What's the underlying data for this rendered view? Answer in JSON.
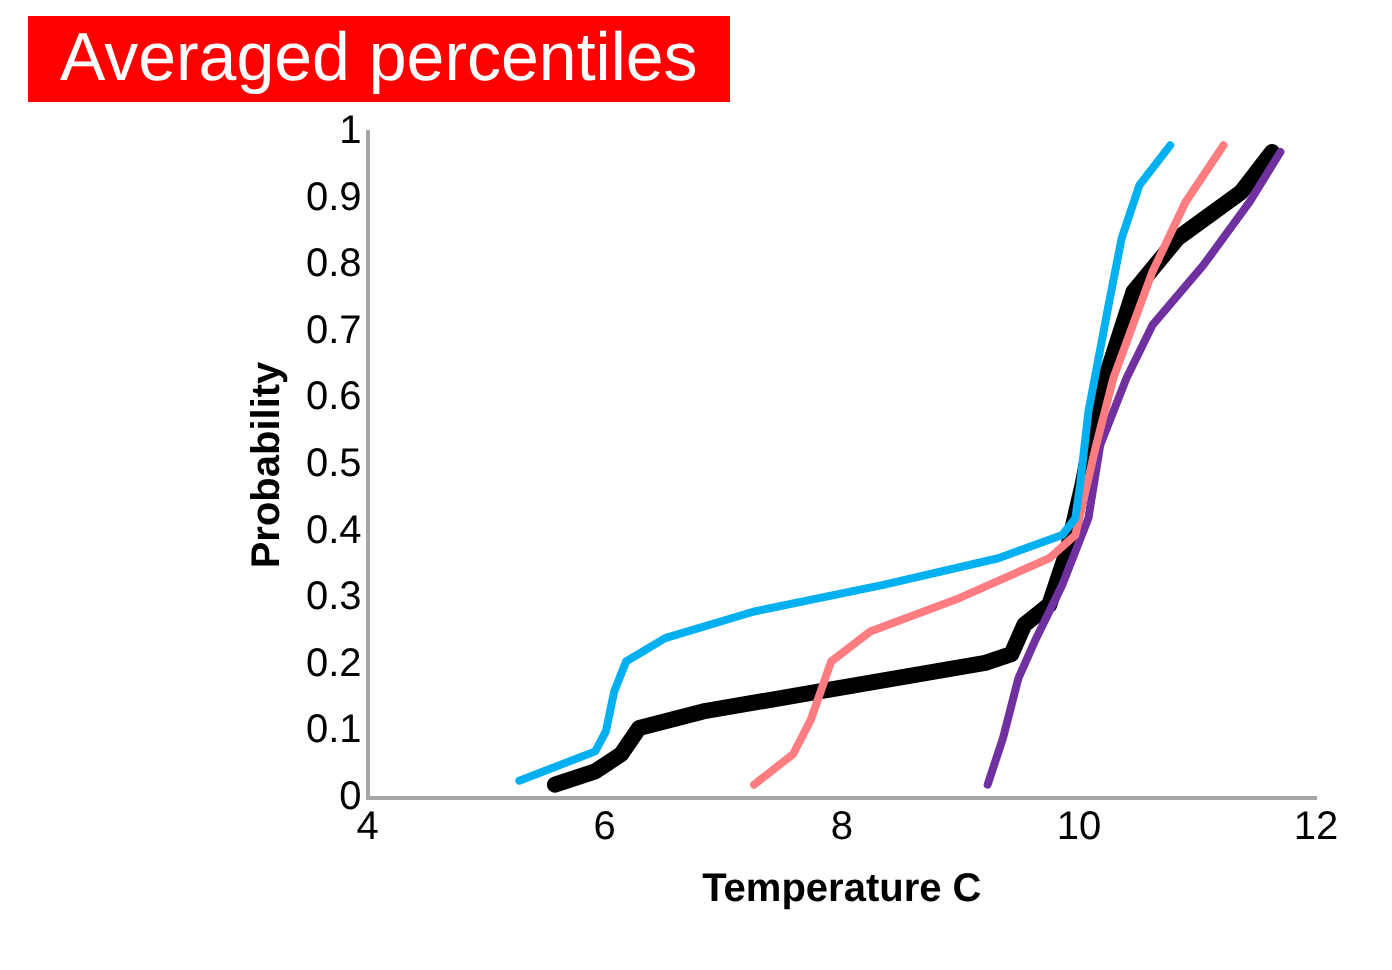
{
  "chart_data": {
    "type": "line",
    "title": "Averaged percentiles",
    "xlabel": "Temperature C",
    "ylabel": "Probability",
    "xlim": [
      4,
      12
    ],
    "xticks": [
      4,
      6,
      8,
      10,
      12
    ],
    "ylim": [
      0,
      1
    ],
    "yticks": [
      0,
      0.1,
      0.2,
      0.3,
      0.4,
      0.5,
      0.6,
      0.7,
      0.8,
      0.9,
      1
    ],
    "grid": false,
    "legend": false,
    "series": [
      {
        "color": "#00b0f0",
        "x": [
          5.28,
          5.92,
          6.01,
          6.08,
          6.18,
          6.51,
          7.26,
          8.35,
          9.32,
          9.86,
          9.97,
          10.01,
          10.08,
          10.25,
          10.36,
          10.51,
          10.77
        ],
        "values": [
          0.026,
          0.07,
          0.1,
          0.16,
          0.205,
          0.24,
          0.28,
          0.32,
          0.36,
          0.395,
          0.42,
          0.47,
          0.58,
          0.74,
          0.84,
          0.92,
          0.98
        ]
      },
      {
        "color": "#ff7c80",
        "x": [
          7.26,
          7.59,
          7.74,
          7.91,
          8.24,
          8.99,
          9.75,
          9.97,
          10.14,
          10.29,
          10.62,
          10.9,
          11.22
        ],
        "values": [
          0.02,
          0.066,
          0.118,
          0.205,
          0.25,
          0.3,
          0.36,
          0.395,
          0.526,
          0.63,
          0.79,
          0.895,
          0.98
        ]
      },
      {
        "color": "#7030a0",
        "x": [
          9.23,
          9.36,
          9.49,
          9.64,
          9.86,
          10.08,
          10.18,
          10.4,
          10.62,
          11.05,
          11.44,
          11.7
        ],
        "values": [
          0.02,
          0.09,
          0.18,
          0.24,
          0.32,
          0.42,
          0.53,
          0.63,
          0.71,
          0.8,
          0.895,
          0.97
        ]
      },
      {
        "color": "#000000",
        "x": [
          5.58,
          5.92,
          6.14,
          6.29,
          6.83,
          7.91,
          9.21,
          9.43,
          9.54,
          9.75,
          9.9,
          10.03,
          10.18,
          10.46,
          10.83,
          11.37,
          11.63
        ],
        "values": [
          0.02,
          0.04,
          0.066,
          0.105,
          0.13,
          0.163,
          0.203,
          0.216,
          0.26,
          0.29,
          0.37,
          0.47,
          0.605,
          0.76,
          0.84,
          0.91,
          0.97
        ]
      }
    ]
  }
}
